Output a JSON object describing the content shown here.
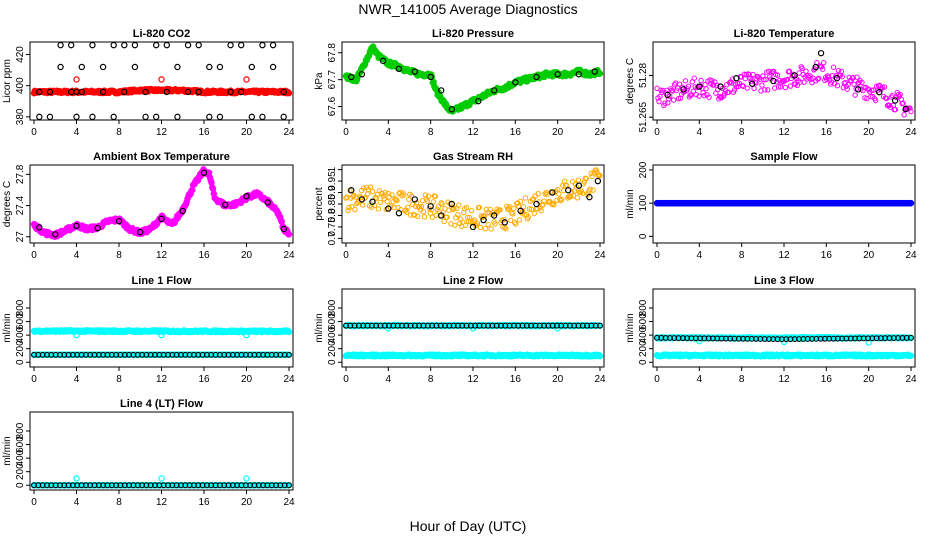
{
  "title": "NWR_141005  Average Diagnostics",
  "x_axis_label": "Hour of Day (UTC)",
  "colors": {
    "black": "#000000",
    "red": "#ff0000",
    "green": "#00cc00",
    "magenta": "#ff00ff",
    "orange": "#ffaa00",
    "blue": "#0000ff",
    "cyan": "#00ffff"
  },
  "chart_data": [
    {
      "type": "scatter",
      "title": "Li-820 CO2",
      "ylabel": "Licor ppm",
      "xlim": [
        0,
        24
      ],
      "ylim": [
        378,
        428
      ],
      "xticks": [
        0,
        4,
        8,
        12,
        16,
        20,
        24
      ],
      "yticks": [
        380,
        400,
        420
      ],
      "series": [
        {
          "color": "#ff0000",
          "style": "dense",
          "x": [
            0,
            2,
            4,
            6,
            8,
            10,
            12,
            14,
            16,
            18,
            20,
            22,
            24
          ],
          "y": [
            396,
            396,
            396,
            396,
            396,
            397,
            397,
            397,
            396,
            396,
            396,
            396,
            396
          ],
          "spread": 0.8,
          "extra": [
            [
              4,
              404
            ],
            [
              12,
              404
            ],
            [
              20,
              404
            ]
          ]
        },
        {
          "color": "#000000",
          "style": "open",
          "x": [
            0.5,
            1.5,
            2.5,
            3.5,
            4,
            4.5,
            5.5,
            6.5,
            7.5,
            8.5,
            9.5,
            10.5,
            11.5,
            12.5,
            13.5,
            14.5,
            15.5,
            16.5,
            17.5,
            18.5,
            19.5,
            20.5,
            21.5,
            22.5,
            23.5
          ],
          "y": [
            380,
            396,
            426,
            396,
            396,
            412,
            426,
            396,
            380,
            426,
            412,
            396,
            380,
            426,
            412,
            396,
            426,
            380,
            412,
            426,
            396,
            380,
            426,
            412,
            396
          ],
          "y2": [
            396,
            380,
            412,
            426,
            380,
            396,
            380,
            412,
            426,
            396,
            426,
            380,
            426,
            396,
            380,
            426,
            396,
            412,
            380,
            396,
            426,
            412,
            380,
            426,
            380
          ]
        }
      ]
    },
    {
      "type": "scatter",
      "title": "Li-820 Pressure",
      "ylabel": "kPa",
      "xlim": [
        0,
        24
      ],
      "ylim": [
        67.55,
        67.84
      ],
      "xticks": [
        0,
        4,
        8,
        12,
        16,
        20,
        24
      ],
      "yticks": [
        67.6,
        67.7,
        67.8
      ],
      "series": [
        {
          "color": "#00cc00",
          "style": "dense",
          "x": [
            0,
            1,
            2,
            2.5,
            3,
            4,
            5,
            6,
            7,
            8,
            8.5,
            9.5,
            10,
            11,
            12,
            13,
            14,
            15,
            16,
            17,
            18,
            19,
            20,
            21,
            22,
            23,
            24
          ],
          "y": [
            67.71,
            67.7,
            67.78,
            67.82,
            67.79,
            67.76,
            67.75,
            67.73,
            67.72,
            67.72,
            67.66,
            67.6,
            67.58,
            67.6,
            67.62,
            67.64,
            67.66,
            67.67,
            67.69,
            67.7,
            67.71,
            67.72,
            67.72,
            67.72,
            67.73,
            67.72,
            67.73
          ],
          "spread": 0.008
        },
        {
          "color": "#000000",
          "style": "open",
          "x": [
            0.5,
            1.5,
            3.5,
            5,
            6.5,
            8,
            9,
            10,
            12.5,
            14,
            16,
            18,
            20,
            22,
            23.5
          ],
          "y": [
            67.71,
            67.72,
            67.77,
            67.74,
            67.73,
            67.71,
            67.66,
            67.59,
            67.62,
            67.66,
            67.69,
            67.71,
            67.72,
            67.72,
            67.73
          ]
        }
      ]
    },
    {
      "type": "scatter",
      "title": "Li-820 Temperature",
      "ylabel": "degrees C",
      "xlim": [
        0,
        24
      ],
      "ylim": [
        51.264,
        51.292
      ],
      "xticks": [
        0,
        4,
        8,
        12,
        16,
        20,
        24
      ],
      "yticks": [
        51.265,
        51.28
      ],
      "series": [
        {
          "color": "#ff00ff",
          "style": "open-dense",
          "x": [
            0,
            2,
            4,
            6,
            8,
            10,
            12,
            14,
            15.5,
            17,
            19,
            21,
            23,
            24
          ],
          "y": [
            51.272,
            51.274,
            51.276,
            51.275,
            51.277,
            51.278,
            51.279,
            51.28,
            51.282,
            51.279,
            51.276,
            51.274,
            51.27,
            51.267
          ],
          "spread": 0.0035
        },
        {
          "color": "#000000",
          "style": "open",
          "x": [
            1,
            2.5,
            4,
            6,
            7.5,
            9,
            11,
            13,
            15,
            15.5,
            17,
            19,
            21,
            22.5,
            23.5
          ],
          "y": [
            51.273,
            51.275,
            51.276,
            51.276,
            51.279,
            51.277,
            51.278,
            51.28,
            51.283,
            51.288,
            51.279,
            51.275,
            51.274,
            51.271,
            51.268
          ]
        }
      ]
    },
    {
      "type": "scatter",
      "title": "Ambient Box Temperature",
      "ylabel": "degrees C",
      "xlim": [
        0,
        24
      ],
      "ylim": [
        26.92,
        27.92
      ],
      "xticks": [
        0,
        4,
        8,
        12,
        16,
        20,
        24
      ],
      "yticks": [
        27.0,
        27.4,
        27.8
      ],
      "series": [
        {
          "color": "#ff00ff",
          "style": "dense",
          "x": [
            0,
            0.5,
            1,
            2,
            3,
            4,
            5,
            6,
            7,
            8,
            9,
            10,
            11,
            12,
            13,
            14,
            15,
            16,
            16.5,
            17,
            18,
            19,
            20,
            21,
            22,
            23,
            23.5,
            24
          ],
          "y": [
            27.15,
            27.1,
            27.05,
            27.02,
            27.08,
            27.15,
            27.1,
            27.12,
            27.2,
            27.22,
            27.1,
            27.05,
            27.1,
            27.25,
            27.15,
            27.35,
            27.65,
            27.85,
            27.8,
            27.5,
            27.4,
            27.42,
            27.5,
            27.55,
            27.45,
            27.3,
            27.1,
            27.05
          ],
          "spread": 0.025
        },
        {
          "color": "#000000",
          "style": "open",
          "x": [
            0.5,
            2,
            4,
            6,
            8,
            10,
            12,
            14,
            16,
            18,
            20,
            22,
            23.5
          ],
          "y": [
            27.12,
            27.03,
            27.14,
            27.11,
            27.2,
            27.06,
            27.23,
            27.33,
            27.82,
            27.41,
            27.52,
            27.44,
            27.1
          ]
        }
      ]
    },
    {
      "type": "scatter",
      "title": "Gas Stream RH",
      "ylabel": "percent",
      "xlim": [
        0,
        24
      ],
      "ylim": [
        0.68,
        1.02
      ],
      "xticks": [
        0,
        4,
        8,
        12,
        16,
        20,
        24
      ],
      "yticks": [
        0.7,
        0.75,
        0.8,
        0.85,
        0.9,
        0.95,
        1.0
      ],
      "series": [
        {
          "color": "#ffaa00",
          "style": "open-dense",
          "x": [
            0,
            2,
            4,
            6,
            8,
            10,
            12,
            14,
            16,
            18,
            20,
            22,
            24
          ],
          "y": [
            0.87,
            0.88,
            0.86,
            0.85,
            0.84,
            0.81,
            0.79,
            0.78,
            0.8,
            0.86,
            0.9,
            0.92,
            0.96
          ],
          "spread": 0.05
        },
        {
          "color": "#000000",
          "style": "open",
          "x": [
            0.5,
            1.5,
            2.5,
            4,
            5,
            6.5,
            8,
            9,
            10,
            12,
            13,
            14,
            15,
            16.5,
            18,
            19.5,
            21,
            22,
            23,
            23.8
          ],
          "y": [
            0.91,
            0.87,
            0.86,
            0.83,
            0.81,
            0.87,
            0.84,
            0.8,
            0.85,
            0.75,
            0.78,
            0.8,
            0.77,
            0.82,
            0.85,
            0.9,
            0.91,
            0.93,
            0.88,
            0.95
          ]
        }
      ]
    },
    {
      "type": "scatter",
      "title": "Sample Flow",
      "ylabel": "ml/min",
      "xlim": [
        0,
        24
      ],
      "ylim": [
        -20,
        215
      ],
      "xticks": [
        0,
        4,
        8,
        12,
        16,
        20,
        24
      ],
      "yticks": [
        0,
        100,
        200
      ],
      "series": [
        {
          "color": "#000000",
          "style": "open-line",
          "x": [
            0,
            24
          ],
          "y": [
            100,
            100
          ]
        },
        {
          "color": "#0000ff",
          "style": "dense",
          "x": [
            0,
            24
          ],
          "y": [
            100,
            100
          ],
          "spread": 0
        }
      ]
    },
    {
      "type": "scatter",
      "title": "Line 1 Flow",
      "ylabel": "ml/min",
      "xlim": [
        0,
        24
      ],
      "ylim": [
        -70,
        1080
      ],
      "xticks": [
        0,
        4,
        8,
        12,
        16,
        20,
        24
      ],
      "yticks": [
        0,
        200,
        400,
        600,
        800
      ],
      "series": [
        {
          "color": "#00ffff",
          "style": "dense",
          "x": [
            0,
            24
          ],
          "y": [
            460,
            455
          ],
          "spread": 12,
          "extra": [
            [
              4,
              400
            ],
            [
              12,
              400
            ],
            [
              20,
              400
            ]
          ]
        },
        {
          "color": "#00ffff",
          "style": "dense",
          "x": [
            0,
            24
          ],
          "y": [
            110,
            110
          ],
          "spread": 0
        },
        {
          "color": "#000000",
          "style": "open-line",
          "x": [
            0,
            24
          ],
          "y": [
            110,
            110
          ]
        }
      ]
    },
    {
      "type": "scatter",
      "title": "Line 2 Flow",
      "ylabel": "ml/min",
      "xlim": [
        0,
        24
      ],
      "ylim": [
        -70,
        1080
      ],
      "xticks": [
        0,
        4,
        8,
        12,
        16,
        20,
        24
      ],
      "yticks": [
        0,
        200,
        400,
        600,
        800
      ],
      "series": [
        {
          "color": "#00ffff",
          "style": "dense",
          "x": [
            0,
            24
          ],
          "y": [
            540,
            540
          ],
          "spread": 8,
          "extra": [
            [
              4,
              500
            ],
            [
              12,
              500
            ],
            [
              20,
              500
            ]
          ]
        },
        {
          "color": "#000000",
          "style": "open-line",
          "x": [
            0,
            24
          ],
          "y": [
            540,
            540
          ]
        },
        {
          "color": "#00ffff",
          "style": "dense",
          "x": [
            0,
            24
          ],
          "y": [
            100,
            100
          ],
          "spread": 12
        }
      ]
    },
    {
      "type": "scatter",
      "title": "Line 3 Flow",
      "ylabel": "ml/min",
      "xlim": [
        0,
        24
      ],
      "ylim": [
        -70,
        1080
      ],
      "xticks": [
        0,
        4,
        8,
        12,
        16,
        20,
        24
      ],
      "yticks": [
        0,
        200,
        400,
        600,
        800
      ],
      "series": [
        {
          "color": "#00ffff",
          "style": "dense",
          "x": [
            0,
            24
          ],
          "y": [
            360,
            360
          ],
          "spread": 8,
          "extra": [
            [
              4,
              310
            ],
            [
              12,
              300
            ],
            [
              20,
              290
            ]
          ]
        },
        {
          "color": "#000000",
          "style": "open-line",
          "x": [
            0,
            12,
            24
          ],
          "y": [
            360,
            340,
            360
          ]
        },
        {
          "color": "#00ffff",
          "style": "dense",
          "x": [
            0,
            24
          ],
          "y": [
            100,
            100
          ],
          "spread": 12
        }
      ]
    },
    {
      "type": "scatter",
      "title": "Line 4 (LT) Flow",
      "ylabel": "ml/min",
      "xlim": [
        0,
        24
      ],
      "ylim": [
        -70,
        1080
      ],
      "xticks": [
        0,
        4,
        8,
        12,
        16,
        20,
        24
      ],
      "yticks": [
        0,
        200,
        400,
        600,
        800
      ],
      "series": [
        {
          "color": "#00ffff",
          "style": "dense",
          "x": [
            0,
            24
          ],
          "y": [
            0,
            0
          ],
          "spread": 0,
          "extra": [
            [
              4,
              100
            ],
            [
              12,
              100
            ],
            [
              20,
              100
            ]
          ]
        },
        {
          "color": "#000000",
          "style": "open-line",
          "x": [
            0,
            24
          ],
          "y": [
            0,
            0
          ]
        }
      ]
    }
  ]
}
